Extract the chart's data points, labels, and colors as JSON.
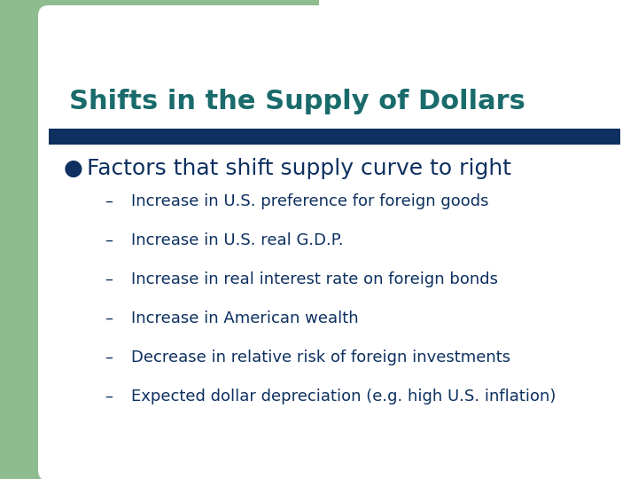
{
  "title": "Shifts in the Supply of Dollars",
  "title_color": "#1a6b6b",
  "title_fontsize": 22,
  "bar_color": "#0d3060",
  "bullet_text": "Factors that shift supply curve to right",
  "bullet_color": "#0d3060",
  "bullet_fontsize": 18,
  "sub_items": [
    "Increase in U.S. preference for foreign goods",
    "Increase in U.S. real G.D.P.",
    "Increase in real interest rate on foreign bonds",
    "Increase in American wealth",
    "Decrease in relative risk of foreign investments",
    "Expected dollar depreciation (e.g. high U.S. inflation)"
  ],
  "sub_color": "#0d3060",
  "sub_fontsize": 13,
  "background_color": "#ffffff",
  "green_color": "#8fbc8f"
}
